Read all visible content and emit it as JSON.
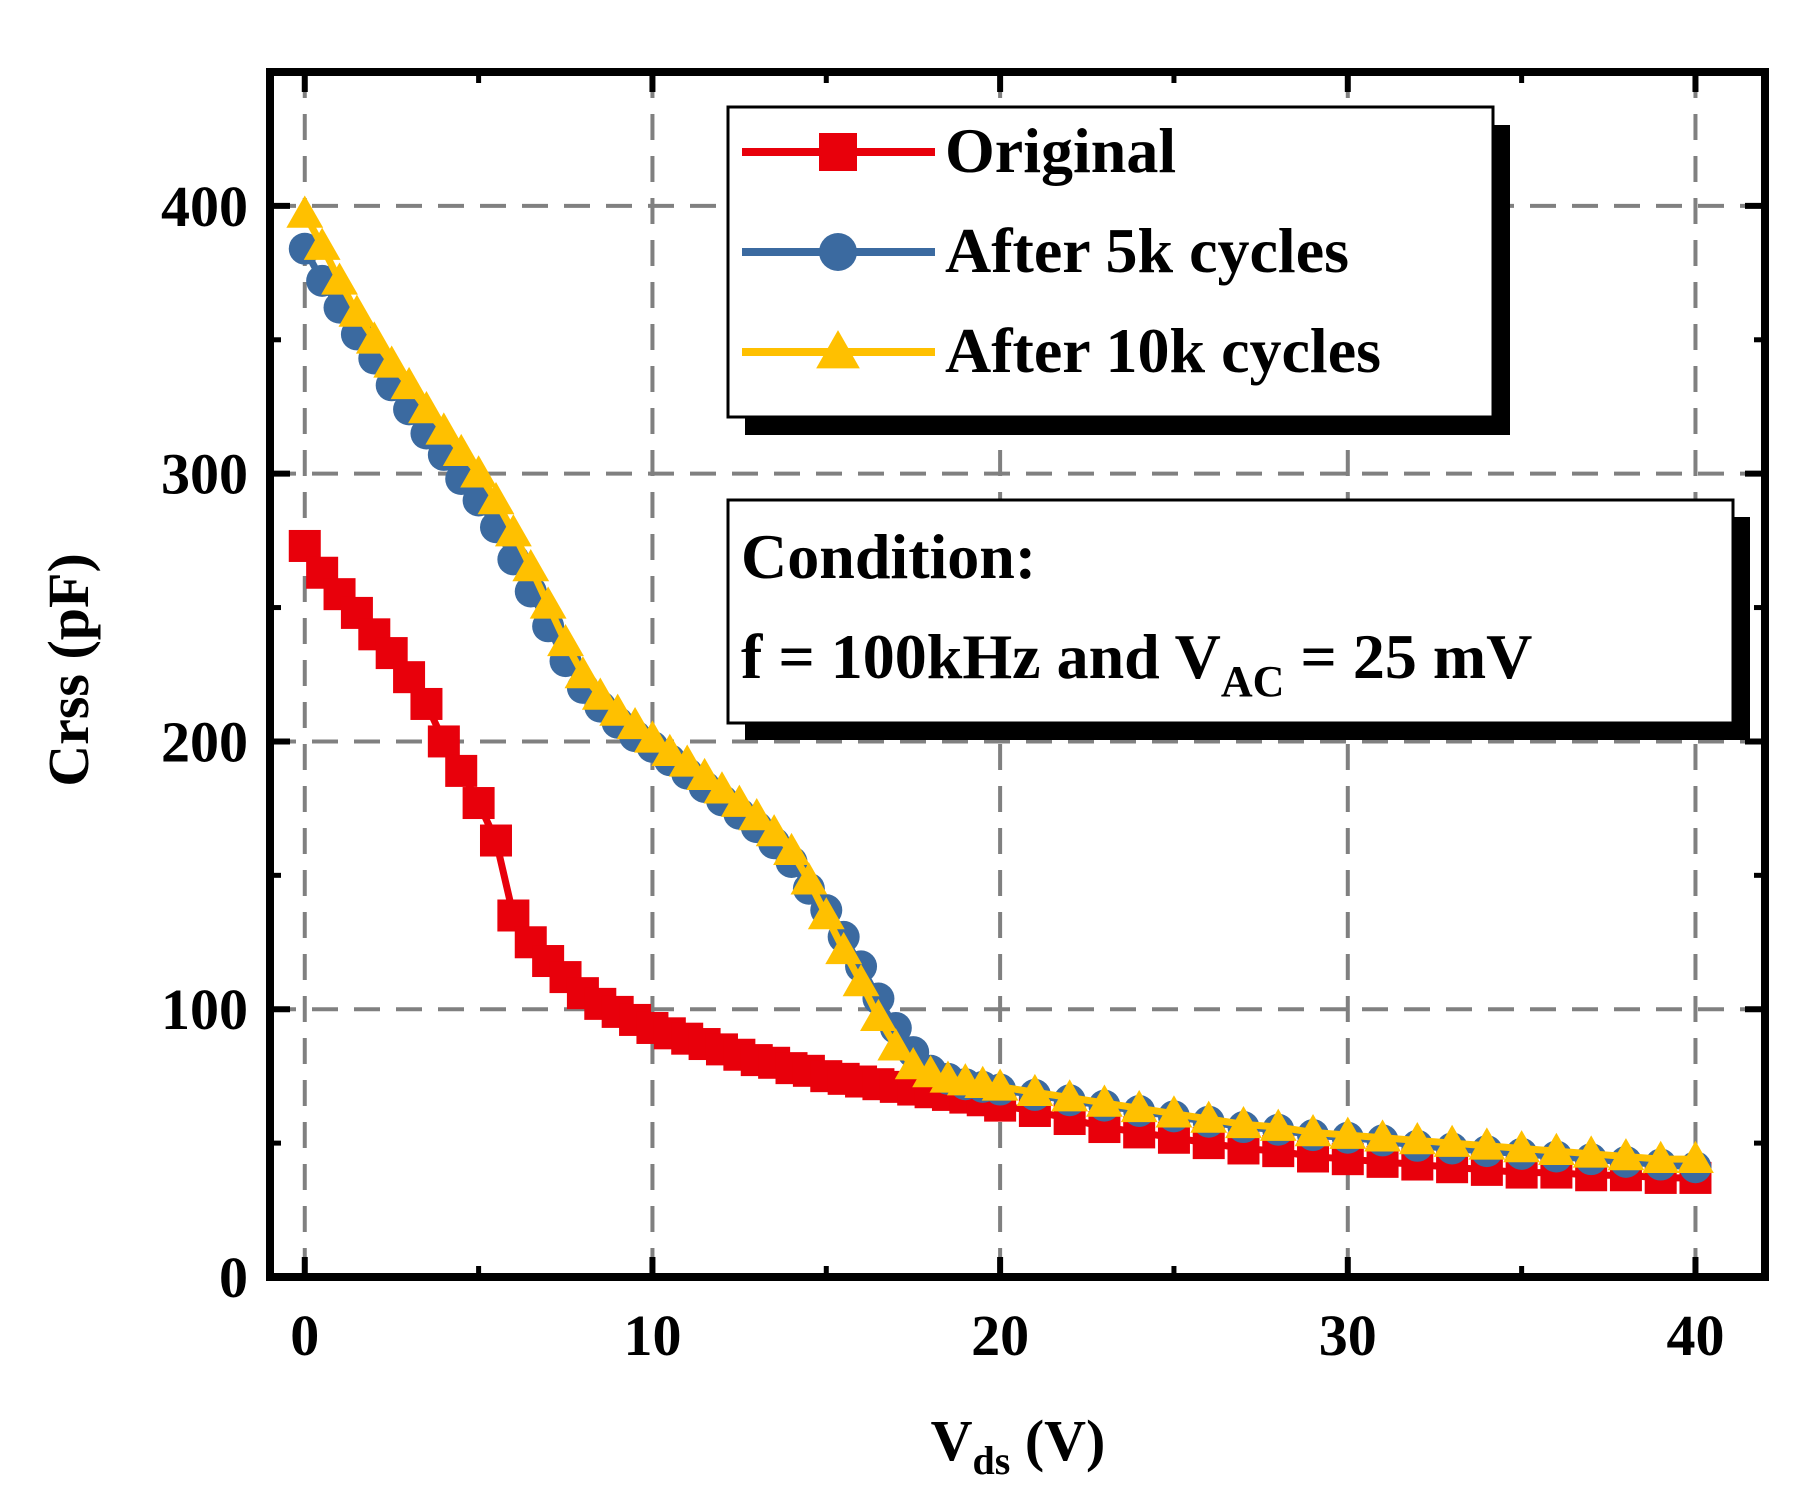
{
  "chart_data": {
    "type": "line",
    "title": "",
    "xlabel": {
      "main": "V",
      "sub": "ds",
      "unit": " (V)"
    },
    "ylabel": "Crss (pF)",
    "xlim": [
      -1,
      42
    ],
    "ylim": [
      0,
      450
    ],
    "xticks": [
      0,
      10,
      20,
      30,
      40
    ],
    "yticks": [
      0,
      100,
      200,
      300,
      400
    ],
    "xtick_labels": [
      "0",
      "10",
      "20",
      "30",
      "40"
    ],
    "ytick_labels": [
      "0",
      "100",
      "200",
      "300",
      "400"
    ],
    "grid": true,
    "legend_position": "top-right",
    "annotation": {
      "line1": "Condition:",
      "line2_prefix": "f = 100kHz and V",
      "line2_sub": "AC",
      "line2_suffix": " = 25 mV"
    },
    "series": [
      {
        "name": "Original",
        "color": "#e8000b",
        "marker": "square",
        "x": [
          0,
          0.5,
          1,
          1.5,
          2,
          2.5,
          3,
          3.5,
          4,
          4.5,
          5,
          5.5,
          6,
          6.5,
          7,
          7.5,
          8,
          8.5,
          9,
          9.5,
          10,
          10.5,
          11,
          11.5,
          12,
          12.5,
          13,
          13.5,
          14,
          14.5,
          15,
          15.5,
          16,
          16.5,
          17,
          17.5,
          18,
          18.5,
          19,
          19.5,
          20,
          21,
          22,
          23,
          24,
          25,
          26,
          27,
          28,
          29,
          30,
          31,
          32,
          33,
          34,
          35,
          36,
          37,
          38,
          39,
          40
        ],
        "y": [
          273,
          263,
          255,
          248,
          240,
          233,
          224,
          214,
          200,
          189,
          177,
          163,
          135,
          125,
          118,
          112,
          106,
          102,
          99,
          96,
          93,
          91,
          89,
          87,
          85,
          83,
          81,
          80,
          78,
          77,
          75,
          74,
          73,
          72,
          71,
          70,
          69,
          68,
          67,
          66,
          64,
          62,
          59,
          56,
          54,
          52,
          50,
          48,
          47,
          45,
          44,
          43,
          42,
          41,
          40,
          39,
          39,
          38,
          38,
          37,
          37
        ]
      },
      {
        "name": "After 5k cycles",
        "color": "#3b6aa0",
        "marker": "circle",
        "x": [
          0,
          0.5,
          1,
          1.5,
          2,
          2.5,
          3,
          3.5,
          4,
          4.5,
          5,
          5.5,
          6,
          6.5,
          7,
          7.5,
          8,
          8.5,
          9,
          9.5,
          10,
          10.5,
          11,
          11.5,
          12,
          12.5,
          13,
          13.5,
          14,
          14.5,
          15,
          15.5,
          16,
          16.5,
          17,
          17.5,
          18,
          18.5,
          19,
          19.5,
          20,
          21,
          22,
          23,
          24,
          25,
          26,
          27,
          28,
          29,
          30,
          31,
          32,
          33,
          34,
          35,
          36,
          37,
          38,
          39,
          40
        ],
        "y": [
          384,
          372,
          362,
          352,
          343,
          333,
          324,
          315,
          307,
          298,
          290,
          280,
          268,
          256,
          243,
          230,
          220,
          213,
          207,
          202,
          198,
          193,
          188,
          183,
          178,
          173,
          168,
          162,
          155,
          145,
          137,
          127,
          116,
          104,
          93,
          84,
          77,
          74,
          72,
          71,
          70,
          68,
          66,
          64,
          62,
          60,
          58,
          56,
          55,
          53,
          52,
          51,
          49,
          48,
          47,
          46,
          45,
          44,
          43,
          42,
          41
        ]
      },
      {
        "name": "After 10k cycles",
        "color": "#ffc000",
        "marker": "triangle",
        "x": [
          0,
          0.5,
          1,
          1.5,
          2,
          2.5,
          3,
          3.5,
          4,
          4.5,
          5,
          5.5,
          6,
          6.5,
          7,
          7.5,
          8,
          8.5,
          9,
          9.5,
          10,
          10.5,
          11,
          11.5,
          12,
          12.5,
          13,
          13.5,
          14,
          14.5,
          15,
          15.5,
          16,
          16.5,
          17,
          17.5,
          18,
          18.5,
          19,
          19.5,
          20,
          21,
          22,
          23,
          24,
          25,
          26,
          27,
          28,
          29,
          30,
          31,
          32,
          33,
          34,
          35,
          36,
          37,
          38,
          39,
          40
        ],
        "y": [
          397,
          385,
          372,
          360,
          350,
          341,
          333,
          324,
          316,
          308,
          300,
          290,
          278,
          265,
          251,
          237,
          225,
          217,
          211,
          206,
          201,
          196,
          192,
          187,
          182,
          177,
          172,
          166,
          159,
          148,
          135,
          122,
          110,
          97,
          86,
          79,
          76,
          74,
          73,
          72,
          71,
          69,
          67,
          65,
          63,
          61,
          59,
          57,
          56,
          54,
          53,
          52,
          51,
          50,
          49,
          48,
          47,
          46,
          45,
          44,
          44
        ]
      }
    ]
  }
}
